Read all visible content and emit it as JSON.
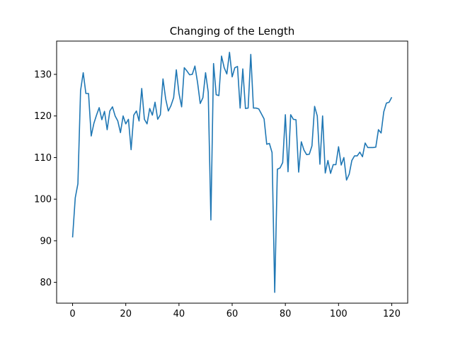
{
  "chart_data": {
    "type": "line",
    "title": "Changing of the Length",
    "xlabel": "",
    "ylabel": "",
    "xlim": [
      -6,
      126
    ],
    "ylim": [
      75,
      138
    ],
    "xticks": [
      0,
      20,
      40,
      60,
      80,
      100,
      120
    ],
    "yticks": [
      80,
      90,
      100,
      110,
      120,
      130
    ],
    "grid": false,
    "series": [
      {
        "color": "#1f77b4",
        "x": [
          0,
          1,
          2,
          3,
          4,
          5,
          6,
          7,
          8,
          9,
          10,
          11,
          12,
          13,
          14,
          15,
          16,
          17,
          18,
          19,
          20,
          21,
          22,
          23,
          24,
          25,
          26,
          27,
          28,
          29,
          30,
          31,
          32,
          33,
          34,
          35,
          36,
          37,
          38,
          39,
          40,
          41,
          42,
          43,
          44,
          45,
          46,
          47,
          48,
          49,
          50,
          51,
          52,
          53,
          54,
          55,
          56,
          57,
          58,
          59,
          60,
          61,
          62,
          63,
          64,
          65,
          66,
          67,
          68,
          69,
          70,
          71,
          72,
          73,
          74,
          75,
          76,
          77,
          78,
          79,
          80,
          81,
          82,
          83,
          84,
          85,
          86,
          87,
          88,
          89,
          90,
          91,
          92,
          93,
          94,
          95,
          96,
          97,
          98,
          99,
          100,
          101,
          102,
          103,
          104,
          105,
          106,
          107,
          108,
          109,
          110,
          111,
          112,
          113,
          114,
          115,
          116,
          117,
          118,
          119,
          120
        ],
        "y": [
          90.8,
          100.3,
          103.7,
          126.1,
          130.4,
          125.4,
          125.4,
          115.2,
          118.2,
          120.2,
          122.0,
          119.1,
          121.1,
          116.7,
          121.2,
          122.2,
          120.0,
          118.8,
          116.0,
          120.0,
          118.1,
          119.2,
          111.9,
          120.2,
          121.2,
          118.8,
          126.6,
          119.2,
          118.1,
          121.8,
          120.2,
          123.3,
          119.2,
          120.3,
          128.9,
          124.1,
          121.2,
          122.5,
          124.4,
          131.1,
          125.4,
          122.2,
          131.6,
          130.8,
          129.9,
          130.0,
          132.0,
          128.0,
          123.0,
          124.4,
          130.4,
          125.7,
          95.0,
          132.6,
          125.1,
          124.9,
          134.4,
          131.6,
          130.1,
          135.3,
          129.4,
          131.6,
          131.9,
          121.9,
          131.3,
          121.8,
          121.9,
          134.8,
          121.9,
          121.9,
          121.7,
          120.5,
          119.3,
          113.2,
          113.4,
          111.2,
          77.6,
          107.2,
          107.5,
          108.8,
          120.3,
          106.6,
          120.3,
          119.2,
          119.1,
          106.5,
          113.8,
          111.8,
          110.7,
          110.8,
          112.8,
          122.3,
          120.0,
          108.4,
          120.0,
          106.3,
          109.3,
          106.2,
          108.3,
          108.3,
          112.6,
          108.2,
          110.0,
          104.6,
          106.0,
          109.3,
          110.4,
          110.4,
          111.3,
          110.2,
          113.5,
          112.4,
          112.4,
          112.4,
          112.5,
          116.7,
          115.9,
          121.0,
          123.1,
          123.3,
          124.5
        ]
      }
    ]
  }
}
